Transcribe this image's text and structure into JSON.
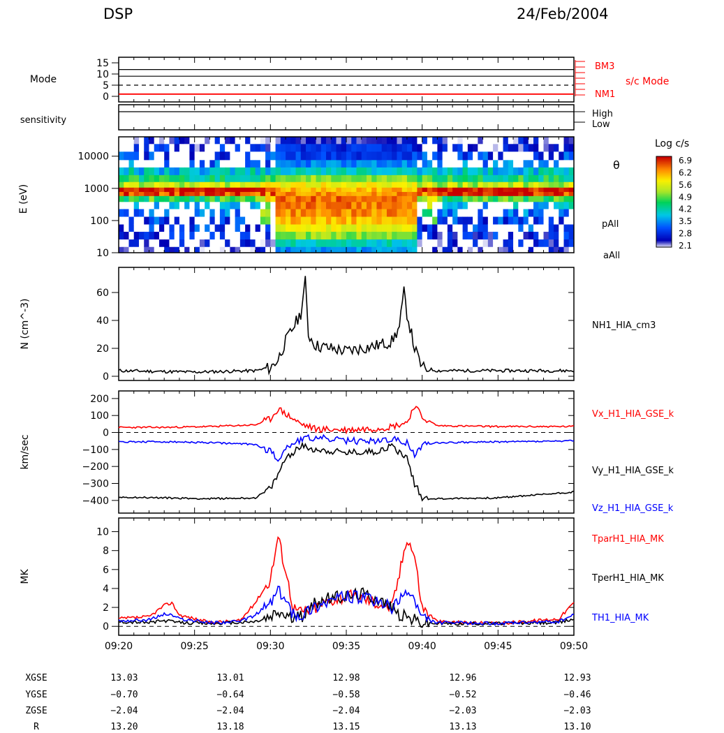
{
  "header": {
    "instrument": "DSP",
    "date": "24/Feb/2004"
  },
  "colors": {
    "red": "#ff0000",
    "blue": "#0000ff",
    "black": "#000000"
  },
  "chart_data": [
    {
      "type": "line",
      "panel": "mode",
      "ylabel": "Mode",
      "ylim": [
        0,
        15
      ],
      "yticks": [
        "15",
        "10",
        "5",
        "0"
      ],
      "lines": [
        {
          "y": 12,
          "color": "#000000"
        },
        {
          "y": 9,
          "color": "#000000"
        },
        {
          "y": 5,
          "color": "#000000",
          "dashed": true
        },
        {
          "y": 1,
          "color": "#ff0000"
        }
      ],
      "right_labels": [
        {
          "text": "BM3",
          "color": "#ff0000"
        },
        {
          "text": "s/c Mode",
          "color": "#ff0000"
        },
        {
          "text": "NM1",
          "color": "#ff0000"
        }
      ]
    },
    {
      "type": "line",
      "panel": "sensitivity",
      "ylabel": "sensitivity",
      "right_labels": [
        {
          "text": "High",
          "color": "#000000"
        },
        {
          "text": "Low",
          "color": "#000000"
        }
      ]
    },
    {
      "type": "heatmap",
      "panel": "spectrogram",
      "ylabel": "E (eV)",
      "yscale": "log",
      "yticks": [
        "10000",
        "1000",
        "100",
        "10"
      ],
      "colorbar": {
        "title": "Log c/s",
        "ticks": [
          "6.9",
          "6.2",
          "5.6",
          "4.9",
          "4.2",
          "3.5",
          "2.8",
          "2.1"
        ],
        "range": [
          2.1,
          6.9
        ]
      },
      "right_labels": [
        {
          "text": "θ",
          "color": "#000000"
        },
        {
          "text": "pAll",
          "color": "#000000"
        },
        {
          "text": "aAll",
          "color": "#000000"
        }
      ],
      "spec_energy_boundaries": [
        10,
        100,
        1000,
        10000
      ],
      "spec_times": [
        0,
        2,
        4,
        6,
        8,
        10,
        12,
        14,
        16,
        18,
        20,
        22,
        24,
        26,
        28,
        30
      ],
      "spec_rows": {
        "energy": [
          12,
          20,
          35,
          60,
          100,
          180,
          300,
          500,
          700,
          900,
          1300,
          2000,
          3500,
          6000,
          10000,
          20000,
          30000
        ],
        "quiet": [
          2.4,
          2.6,
          2.8,
          3.0,
          3.0,
          3.4,
          3.8,
          4.6,
          6.6,
          6.9,
          5.2,
          4.4,
          3.9,
          3.3,
          3.0,
          2.7,
          2.5
        ],
        "disturbed": [
          3.5,
          4.0,
          5.0,
          5.6,
          6.0,
          6.2,
          6.3,
          6.4,
          6.2,
          6.0,
          5.6,
          5.0,
          4.0,
          3.4,
          3.0,
          2.8,
          2.5
        ]
      }
    },
    {
      "type": "line",
      "panel": "density",
      "ylabel": "N (cm^-3)",
      "ylim": [
        0,
        75
      ],
      "yticks": [
        "60",
        "40",
        "20",
        "0"
      ],
      "x": [
        0,
        5,
        9,
        10,
        10.5,
        11,
        11.5,
        12,
        12.3,
        12.5,
        13,
        14,
        15,
        16,
        17,
        18,
        18.5,
        18.8,
        19,
        19.5,
        20,
        21,
        25,
        30
      ],
      "series": [
        {
          "name": "NH1_HIA_cm3",
          "color": "#000000",
          "values": [
            4,
            3,
            4,
            6,
            12,
            25,
            35,
            45,
            68,
            30,
            22,
            20,
            18,
            20,
            22,
            25,
            35,
            60,
            45,
            20,
            6,
            4,
            4,
            4
          ]
        }
      ]
    },
    {
      "type": "line",
      "panel": "velocity",
      "ylabel": "km/sec",
      "ylim": [
        -450,
        220
      ],
      "yticks": [
        "200",
        "100",
        "0",
        "−100",
        "−200",
        "−300",
        "−400"
      ],
      "x": [
        0,
        3,
        6,
        9,
        10,
        10.5,
        11,
        12,
        13,
        15,
        17,
        18,
        19,
        19.5,
        20,
        21,
        25,
        30
      ],
      "series": [
        {
          "name": "Vx_H1_HIA_GSE_k",
          "color": "#ff0000",
          "values": [
            30,
            30,
            35,
            45,
            80,
            140,
            110,
            50,
            20,
            15,
            25,
            35,
            60,
            160,
            90,
            40,
            35,
            35
          ]
        },
        {
          "name": "Vy_H1_HIA_GSE_k",
          "color": "#000000",
          "values": [
            -380,
            -385,
            -390,
            -385,
            -330,
            -250,
            -150,
            -80,
            -100,
            -120,
            -110,
            -80,
            -150,
            -300,
            -385,
            -390,
            -385,
            -350
          ]
        },
        {
          "name": "Vz_H1_HIA_GSE_k",
          "color": "#0000ff",
          "values": [
            -55,
            -55,
            -60,
            -70,
            -110,
            -160,
            -90,
            -40,
            -30,
            -50,
            -50,
            -40,
            -60,
            -140,
            -70,
            -60,
            -55,
            -50
          ]
        }
      ]
    },
    {
      "type": "line",
      "panel": "temperature",
      "ylabel": "MK",
      "ylim": [
        -0.5,
        11
      ],
      "yticks": [
        "10",
        "8",
        "6",
        "4",
        "2",
        "0"
      ],
      "x": [
        0,
        2,
        3,
        3.5,
        4,
        6,
        8,
        9,
        10,
        10.5,
        11,
        11.5,
        12,
        13,
        14,
        15,
        16,
        17,
        18,
        18.5,
        19,
        19.5,
        20,
        21,
        25,
        29,
        30
      ],
      "series": [
        {
          "name": "TparH1_HIA_MK",
          "color": "#ff0000",
          "values": [
            0.8,
            1.0,
            2.2,
            2.5,
            1.2,
            0.4,
            0.6,
            2.5,
            5.0,
            9.5,
            6.0,
            2.0,
            1.5,
            2.0,
            2.8,
            3.2,
            3.0,
            2.5,
            2.0,
            5.5,
            9.5,
            7.5,
            2.0,
            0.5,
            0.3,
            0.8,
            2.5
          ]
        },
        {
          "name": "TperH1_HIA_MK",
          "color": "#000000",
          "values": [
            0.5,
            0.4,
            0.6,
            0.5,
            0.4,
            0.3,
            0.4,
            0.5,
            0.9,
            1.5,
            1.2,
            0.8,
            1.0,
            2.5,
            3.0,
            3.2,
            3.5,
            3.0,
            2.0,
            1.2,
            1.0,
            0.7,
            0.4,
            0.3,
            0.3,
            0.4,
            0.8
          ]
        },
        {
          "name": "TH1_HIA_MK",
          "color": "#0000ff",
          "values": [
            0.6,
            0.7,
            1.3,
            1.2,
            0.8,
            0.4,
            0.5,
            1.2,
            2.5,
            3.8,
            2.8,
            1.2,
            1.2,
            2.2,
            2.8,
            3.2,
            3.0,
            2.6,
            2.0,
            2.5,
            3.8,
            2.8,
            0.8,
            0.4,
            0.3,
            0.5,
            1.2
          ]
        }
      ]
    }
  ],
  "time_axis": {
    "ticks": [
      "09:20",
      "09:25",
      "09:30",
      "09:35",
      "09:40",
      "09:45",
      "09:50"
    ]
  },
  "orbit": {
    "labels": [
      "XGSE",
      "YGSE",
      "ZGSE",
      "R"
    ],
    "columns": [
      [
        "13.03",
        "−0.70",
        "−2.04",
        "13.20"
      ],
      [
        "13.01",
        "−0.64",
        "−2.04",
        "13.18"
      ],
      [
        "12.98",
        "−0.58",
        "−2.04",
        "13.15"
      ],
      [
        "12.96",
        "−0.52",
        "−2.03",
        "13.13"
      ],
      [
        "12.93",
        "−0.46",
        "−2.03",
        "13.10"
      ]
    ]
  }
}
